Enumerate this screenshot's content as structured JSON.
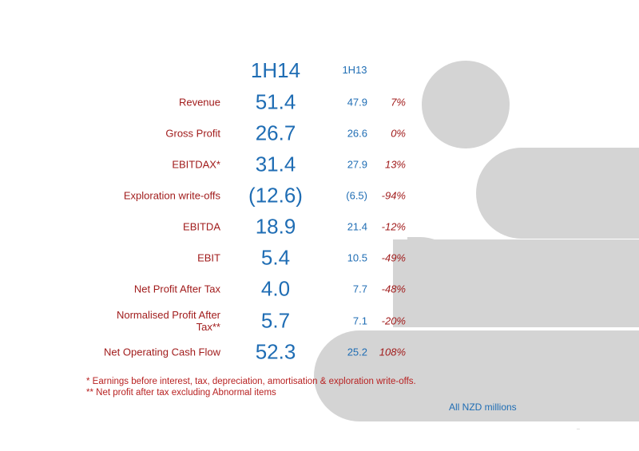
{
  "header": {
    "current_period": "1H14",
    "prior_period": "1H13"
  },
  "rows": [
    {
      "label": "Revenue",
      "current": "51.4",
      "prior": "47.9",
      "change": "7%"
    },
    {
      "label": "Gross Profit",
      "current": "26.7",
      "prior": "26.6",
      "change": "0%"
    },
    {
      "label": "EBITDAX*",
      "current": "31.4",
      "prior": "27.9",
      "change": "13%"
    },
    {
      "label": "Exploration write-offs",
      "current": "(12.6)",
      "prior": "(6.5)",
      "change": "-94%"
    },
    {
      "label": "EBITDA",
      "current": "18.9",
      "prior": "21.4",
      "change": "-12%"
    },
    {
      "label": "EBIT",
      "current": "5.4",
      "prior": "10.5",
      "change": "-49%"
    },
    {
      "label": "Net Profit After Tax",
      "current": "4.0",
      "prior": "7.7",
      "change": "-48%"
    },
    {
      "label": "Normalised Profit After Tax**",
      "current": "5.7",
      "prior": "7.1",
      "change": "-20%"
    },
    {
      "label": "Net Operating Cash Flow",
      "current": "52.3",
      "prior": "25.2",
      "change": "108%"
    }
  ],
  "footnotes": {
    "note1": "* Earnings before interest, tax, depreciation, amortisation & exploration write-offs.",
    "note2": "** Net profit after tax excluding Abnormal items"
  },
  "units_note": "All NZD millions",
  "corner_mark": "..",
  "colors": {
    "label_red": "#a11c1c",
    "value_blue": "#1f6db4",
    "decor_grey": "#d4d4d4"
  }
}
